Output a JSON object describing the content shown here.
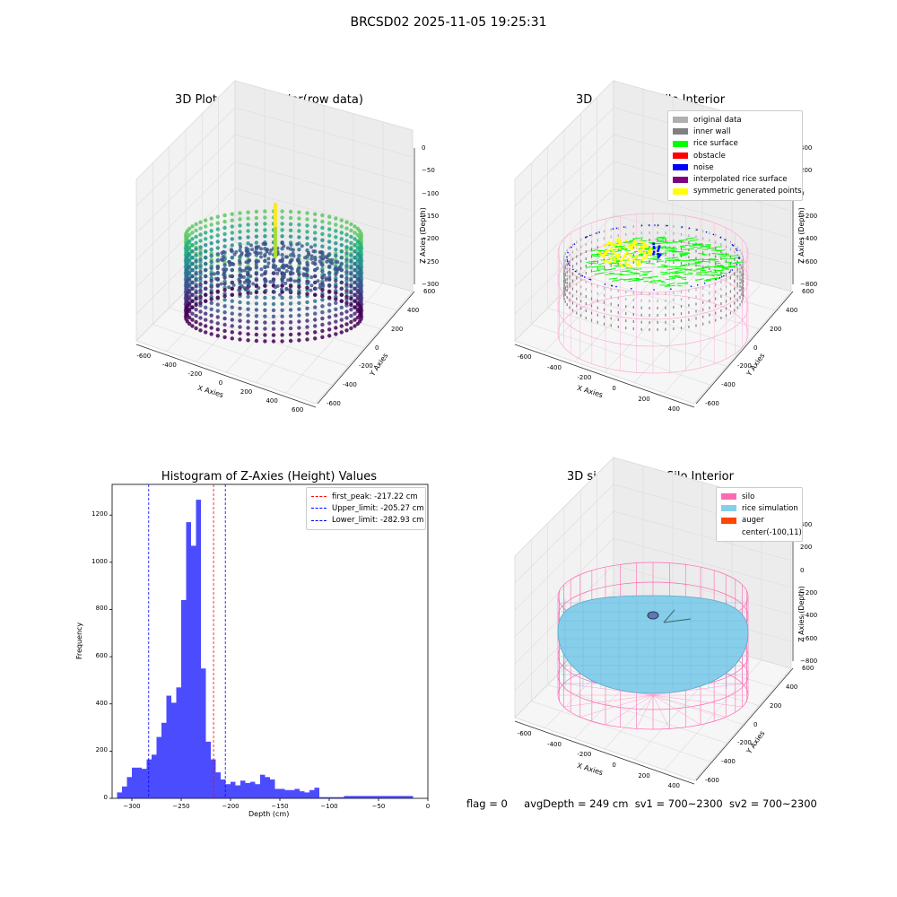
{
  "suptitle": "BRCSD02 2025-11-05 19:25:31",
  "panels": {
    "raw": {
      "title": "3D Plot of Silo Interior(row data)",
      "xlabel": "X Axies",
      "ylabel": "Y Axies",
      "zlabel": "Z Axies (Depth)",
      "x_ticks": [
        "-600",
        "-400",
        "-200",
        "0",
        "200",
        "400",
        "600"
      ],
      "y_ticks": [
        "-600",
        "-400",
        "-200",
        "0",
        "200",
        "400",
        "600"
      ],
      "z_ticks": [
        "0",
        "−50",
        "−100",
        "−150",
        "−200",
        "−250",
        "−300"
      ]
    },
    "classify": {
      "title": "3D classify of Silo Interior",
      "xlabel": "X Axies",
      "ylabel": "Y Axies",
      "zlabel": "Z Axies (Depth)",
      "x_ticks": [
        "-600",
        "-400",
        "-200",
        "0",
        "200",
        "400"
      ],
      "y_ticks": [
        "-600",
        "-400",
        "-200",
        "0",
        "200",
        "400",
        "600"
      ],
      "z_ticks": [
        "400",
        "200",
        "0",
        "−200",
        "−400",
        "−600",
        "−800"
      ],
      "legend": [
        {
          "label": "original data",
          "color": "#b0b0b0"
        },
        {
          "label": "inner wall",
          "color": "#808080"
        },
        {
          "label": "rice surface",
          "color": "#00ff00"
        },
        {
          "label": "obstacle",
          "color": "#ff0000"
        },
        {
          "label": "noise",
          "color": "#0000ff"
        },
        {
          "label": "interpolated rice surface",
          "color": "#800080"
        },
        {
          "label": "symmetric generated points",
          "color": "#ffff00"
        }
      ]
    },
    "simulation": {
      "title": "3D simulation of Silo Interior",
      "xlabel": "X Axies",
      "ylabel": "Y Axies",
      "zlabel": "Z Axies (Depth)",
      "x_ticks": [
        "-600",
        "-400",
        "-200",
        "0",
        "200",
        "400"
      ],
      "y_ticks": [
        "-600",
        "-400",
        "-200",
        "0",
        "200",
        "400",
        "600"
      ],
      "z_ticks": [
        "400",
        "200",
        "0",
        "−200",
        "−400",
        "−600",
        "−800"
      ],
      "legend": [
        {
          "label": "silo",
          "color": "#ff69b4"
        },
        {
          "label": "rice simulation",
          "color": "#87ceeb"
        },
        {
          "label": "auger",
          "color": "#ff4500"
        },
        {
          "label": "center(-100,11)",
          "color": ""
        }
      ]
    }
  },
  "chart_data": [
    {
      "type": "bar",
      "title": "Histogram of Z-Axies (Height) Values",
      "xlabel": "Depth (cm)",
      "ylabel": "Frequency",
      "xlim": [
        -320,
        0
      ],
      "ylim": [
        0,
        1330
      ],
      "x_ticks": [
        -300,
        -250,
        -200,
        -150,
        -100,
        -50,
        0
      ],
      "y_ticks": [
        0,
        200,
        400,
        600,
        800,
        1000,
        1200
      ],
      "bar_color": "#0000ff",
      "bin_width": 5,
      "bins_start": [
        -315,
        -310,
        -305,
        -300,
        -295,
        -290,
        -285,
        -280,
        -275,
        -270,
        -265,
        -260,
        -255,
        -250,
        -245,
        -240,
        -235,
        -230,
        -225,
        -220,
        -215,
        -210,
        -205,
        -200,
        -195,
        -190,
        -185,
        -180,
        -175,
        -170,
        -165,
        -160,
        -155,
        -150,
        -145,
        -140,
        -135,
        -130,
        -125,
        -120,
        -115,
        -110,
        -105,
        -100,
        -95,
        -90,
        -85,
        -80,
        -75,
        -70,
        -65,
        -60,
        -55,
        -50,
        -45,
        -40,
        -35,
        -30,
        -25,
        -20
      ],
      "values": [
        25,
        50,
        90,
        130,
        130,
        125,
        165,
        185,
        260,
        320,
        435,
        405,
        470,
        840,
        1170,
        1070,
        1265,
        550,
        240,
        165,
        110,
        80,
        60,
        70,
        55,
        75,
        65,
        70,
        60,
        100,
        90,
        80,
        40,
        40,
        35,
        35,
        40,
        30,
        25,
        35,
        45,
        5,
        5,
        5,
        5,
        5,
        10,
        10,
        10,
        10,
        10,
        10,
        10,
        10,
        10,
        10,
        10,
        10,
        10,
        10
      ],
      "lines": [
        {
          "name": "first_peak: -217.22 cm",
          "x": -217.22,
          "color": "#ff0000"
        },
        {
          "name": "Upper_limit: -205.27 cm",
          "x": -205.27,
          "color": "#0000ff"
        },
        {
          "name": "Lower_limit: -282.93 cm",
          "x": -282.93,
          "color": "#0000ff"
        }
      ],
      "legend_position": "top-right"
    }
  ],
  "status": {
    "flag": "flag = 0",
    "avg_depth": "avgDepth = 249 cm",
    "sv1": "sv1 = 700~2300",
    "sv2": "sv2 = 700~2300"
  }
}
